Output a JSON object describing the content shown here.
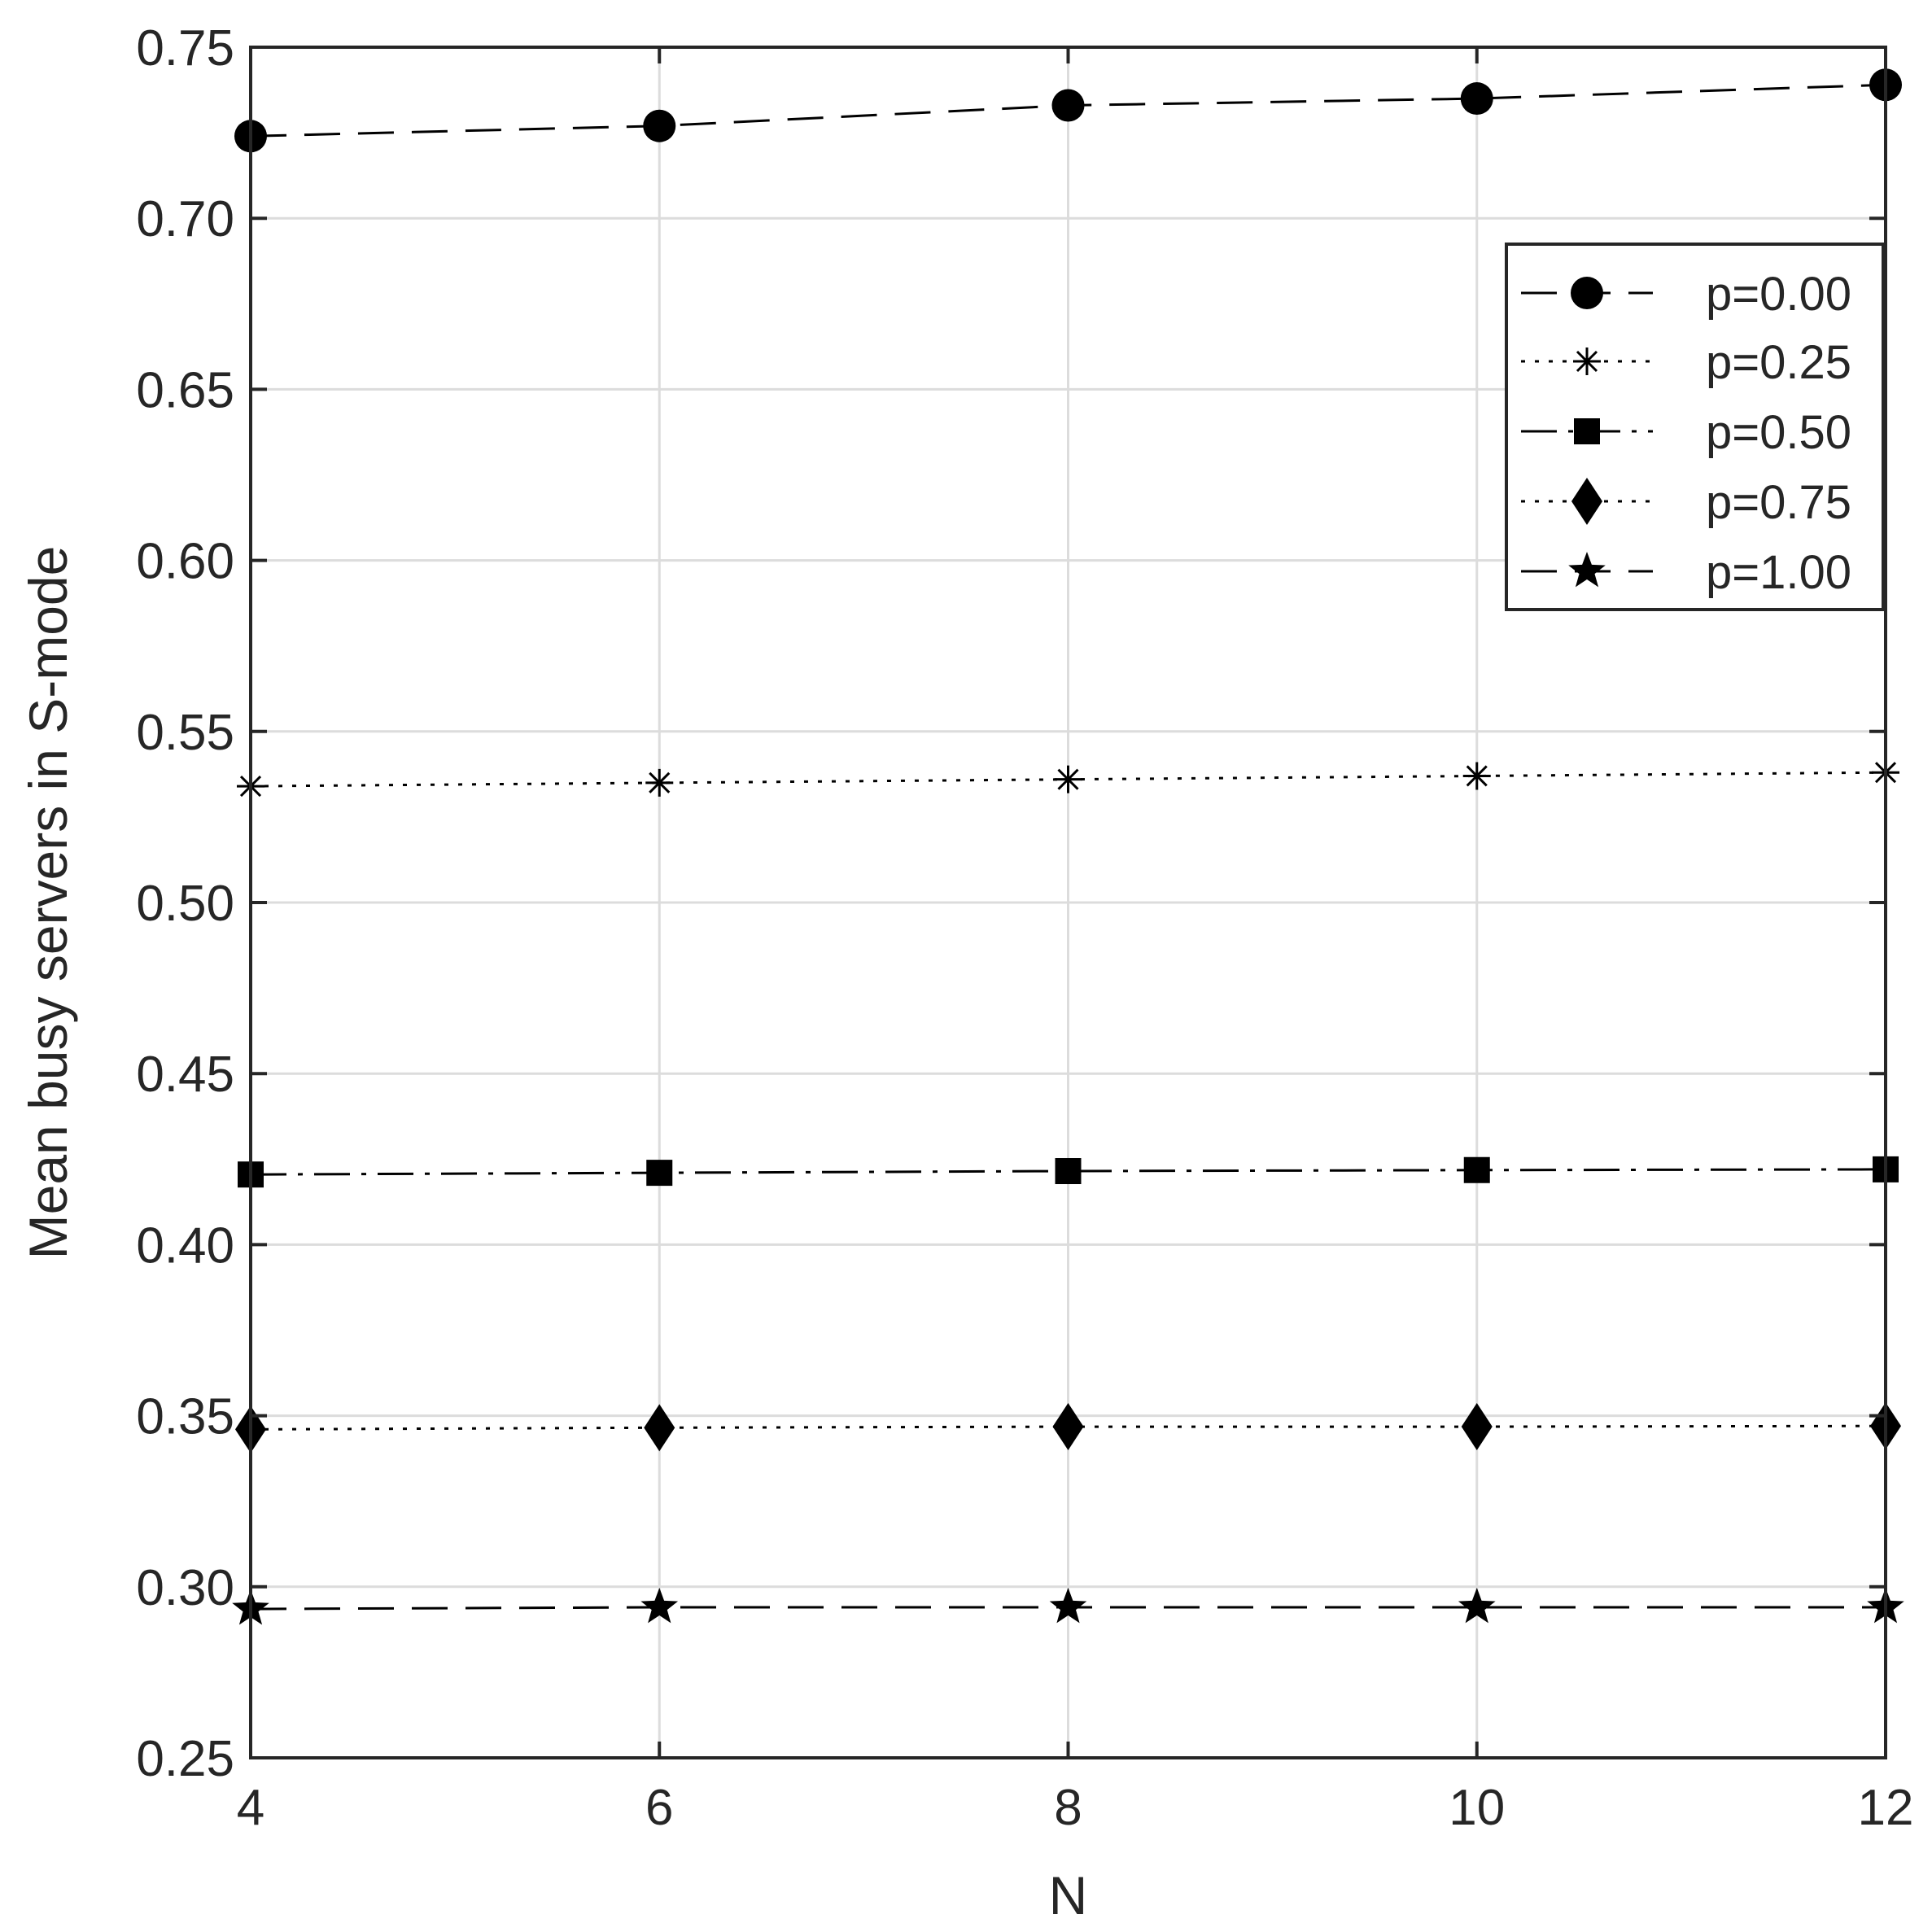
{
  "chart_data": {
    "type": "line",
    "xlabel": "N",
    "ylabel": "Mean busy servers in S-mode",
    "xlim": [
      4,
      12
    ],
    "ylim": [
      0.25,
      0.75
    ],
    "xticks": [
      "4",
      "6",
      "8",
      "10",
      "12"
    ],
    "yticks": [
      "0.25",
      "0.30",
      "0.35",
      "0.40",
      "0.45",
      "0.50",
      "0.55",
      "0.60",
      "0.65",
      "0.70",
      "0.75"
    ],
    "grid": true,
    "legend_position": "top-right",
    "x": [
      4,
      6,
      8,
      10,
      12
    ],
    "series": [
      {
        "name": "p=0.00",
        "marker": "circle",
        "line": "dashed",
        "values": [
          0.724,
          0.727,
          0.733,
          0.735,
          0.739
        ]
      },
      {
        "name": "p=0.25",
        "marker": "asterisk",
        "line": "dotted",
        "values": [
          0.534,
          0.535,
          0.536,
          0.537,
          0.538
        ]
      },
      {
        "name": "p=0.50",
        "marker": "square",
        "line": "dashdot",
        "values": [
          0.4205,
          0.421,
          0.4215,
          0.4218,
          0.422
        ]
      },
      {
        "name": "p=0.75",
        "marker": "diamond",
        "line": "dotted",
        "values": [
          0.346,
          0.3465,
          0.3468,
          0.3468,
          0.347
        ]
      },
      {
        "name": "p=1.00",
        "marker": "star",
        "line": "dashed",
        "values": [
          0.2935,
          0.294,
          0.294,
          0.294,
          0.294
        ]
      }
    ],
    "colors": {
      "line": "#000000",
      "grid": "#dcdcdc",
      "axis": "#262626"
    }
  }
}
